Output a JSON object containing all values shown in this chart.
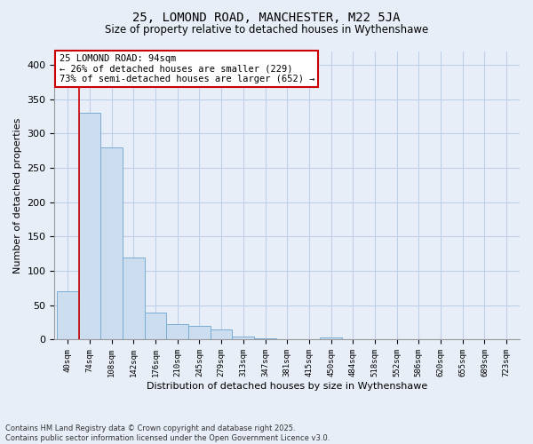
{
  "title_line1": "25, LOMOND ROAD, MANCHESTER, M22 5JA",
  "title_line2": "Size of property relative to detached houses in Wythenshawe",
  "xlabel": "Distribution of detached houses by size in Wythenshawe",
  "ylabel": "Number of detached properties",
  "bar_color": "#ccddf0",
  "bar_edge_color": "#7aadd4",
  "grid_color": "#c0cfe8",
  "background_color": "#e8eef8",
  "categories": [
    "40sqm",
    "74sqm",
    "108sqm",
    "142sqm",
    "176sqm",
    "210sqm",
    "245sqm",
    "279sqm",
    "313sqm",
    "347sqm",
    "381sqm",
    "415sqm",
    "450sqm",
    "484sqm",
    "518sqm",
    "552sqm",
    "586sqm",
    "620sqm",
    "655sqm",
    "689sqm",
    "723sqm"
  ],
  "values": [
    70,
    330,
    280,
    120,
    40,
    22,
    20,
    15,
    5,
    2,
    0,
    0,
    3,
    0,
    0,
    0,
    0,
    0,
    0,
    0,
    1
  ],
  "annotation_text": "25 LOMOND ROAD: 94sqm\n← 26% of detached houses are smaller (229)\n73% of semi-detached houses are larger (652) →",
  "annotation_box_color": "white",
  "annotation_border_color": "#cc0000",
  "vline_color": "#cc0000",
  "footnote_line1": "Contains HM Land Registry data © Crown copyright and database right 2025.",
  "footnote_line2": "Contains public sector information licensed under the Open Government Licence v3.0.",
  "ylim": [
    0,
    420
  ],
  "yticks": [
    0,
    50,
    100,
    150,
    200,
    250,
    300,
    350,
    400
  ]
}
